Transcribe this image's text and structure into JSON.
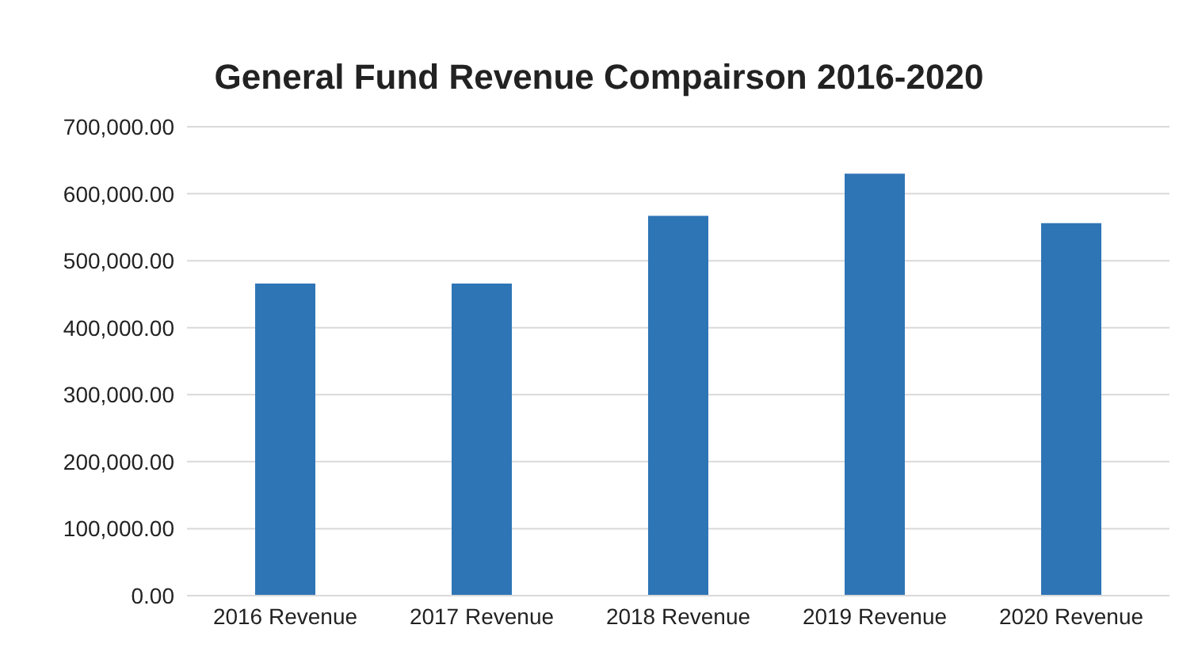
{
  "chart_data": {
    "type": "bar",
    "title": "General Fund Revenue Compairson 2016-2020",
    "categories": [
      "2016 Revenue",
      "2017 Revenue",
      "2018 Revenue",
      "2019 Revenue",
      "2020 Revenue"
    ],
    "values": [
      466000,
      466000,
      567000,
      630000,
      556000
    ],
    "color": "#2e75b6",
    "ylim": [
      0,
      700000
    ],
    "yticks": [
      {
        "value": 0,
        "label": "0.00"
      },
      {
        "value": 100000,
        "label": "100,000.00"
      },
      {
        "value": 200000,
        "label": "200,000.00"
      },
      {
        "value": 300000,
        "label": "300,000.00"
      },
      {
        "value": 400000,
        "label": "400,000.00"
      },
      {
        "value": 500000,
        "label": "500,000.00"
      },
      {
        "value": 600000,
        "label": "600,000.00"
      },
      {
        "value": 700000,
        "label": "700,000.00"
      }
    ],
    "grid": "y"
  }
}
